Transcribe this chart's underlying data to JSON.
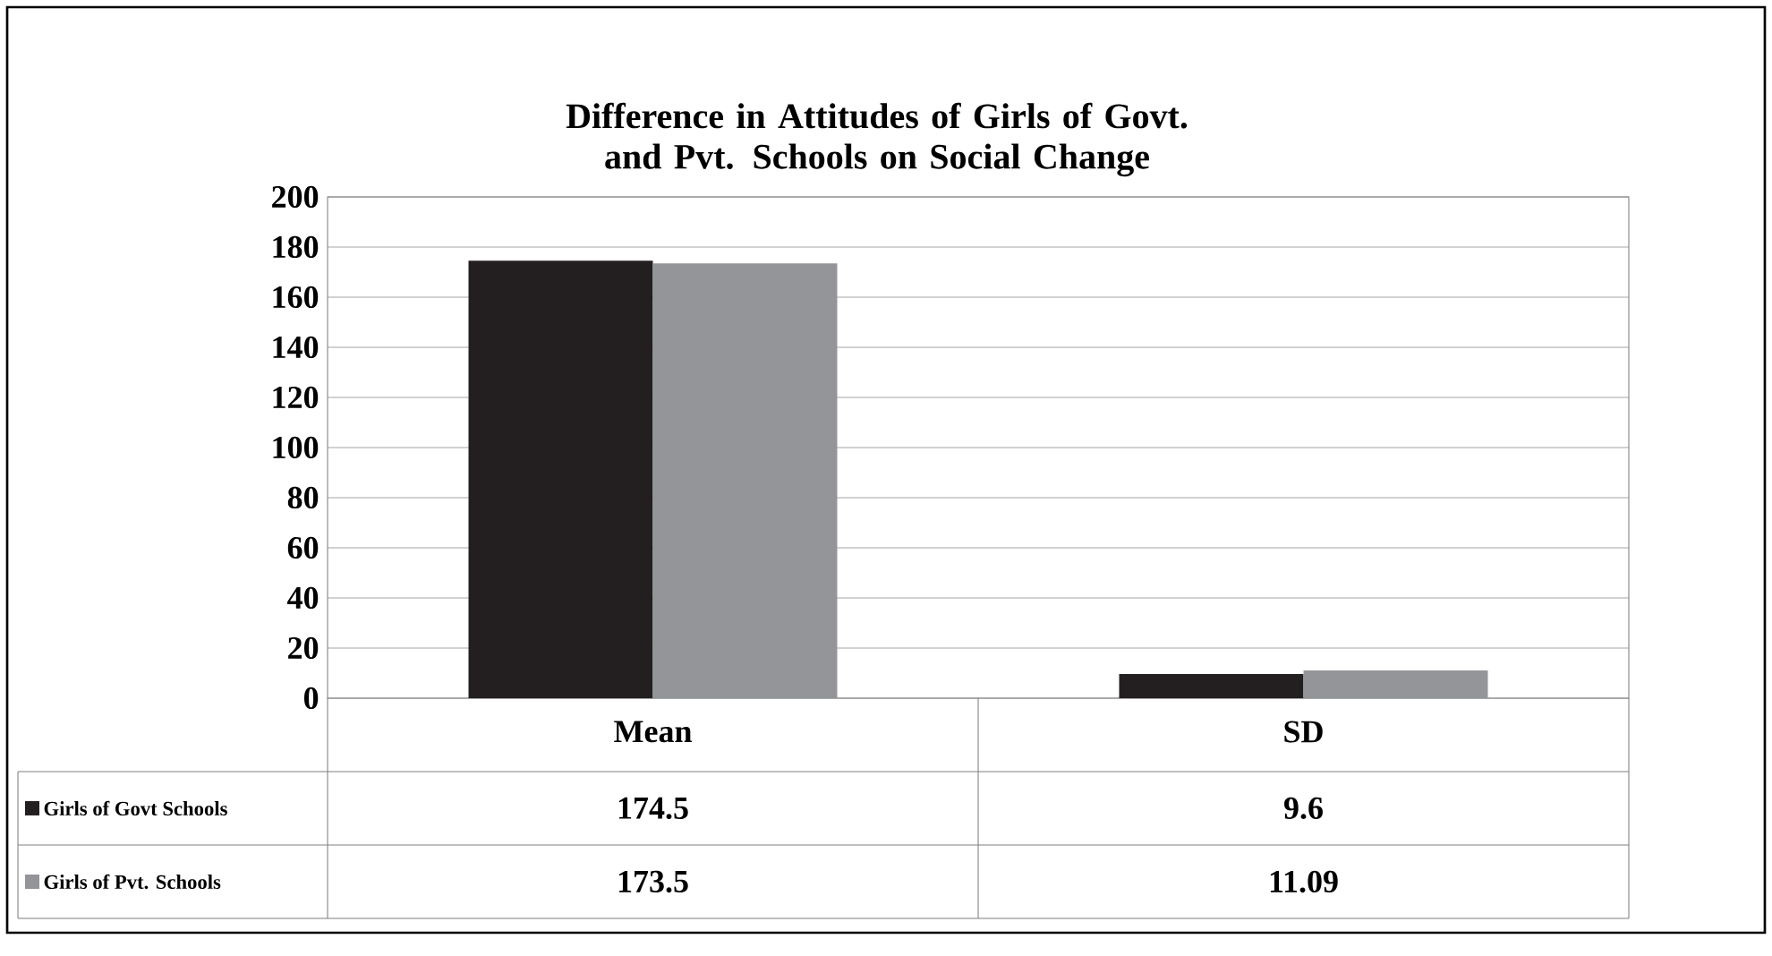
{
  "chart_data": {
    "type": "bar",
    "title": "Difference in Attitudes of Girls of Govt. and Pvt. Schools on Social Change",
    "categories": [
      "Mean",
      "SD"
    ],
    "series": [
      {
        "name": "Girls of Govt Schools",
        "color": "#231f20",
        "values": [
          174.5,
          9.6
        ]
      },
      {
        "name": "Girls of Pvt. Schools",
        "color": "#939598",
        "values": [
          173.5,
          11.09
        ]
      }
    ],
    "ylim": [
      0,
      200
    ],
    "yticks": [
      0,
      20,
      40,
      60,
      80,
      100,
      120,
      140,
      160,
      180,
      200
    ],
    "grid": "y",
    "legend": "bottom",
    "data_labels": true
  }
}
